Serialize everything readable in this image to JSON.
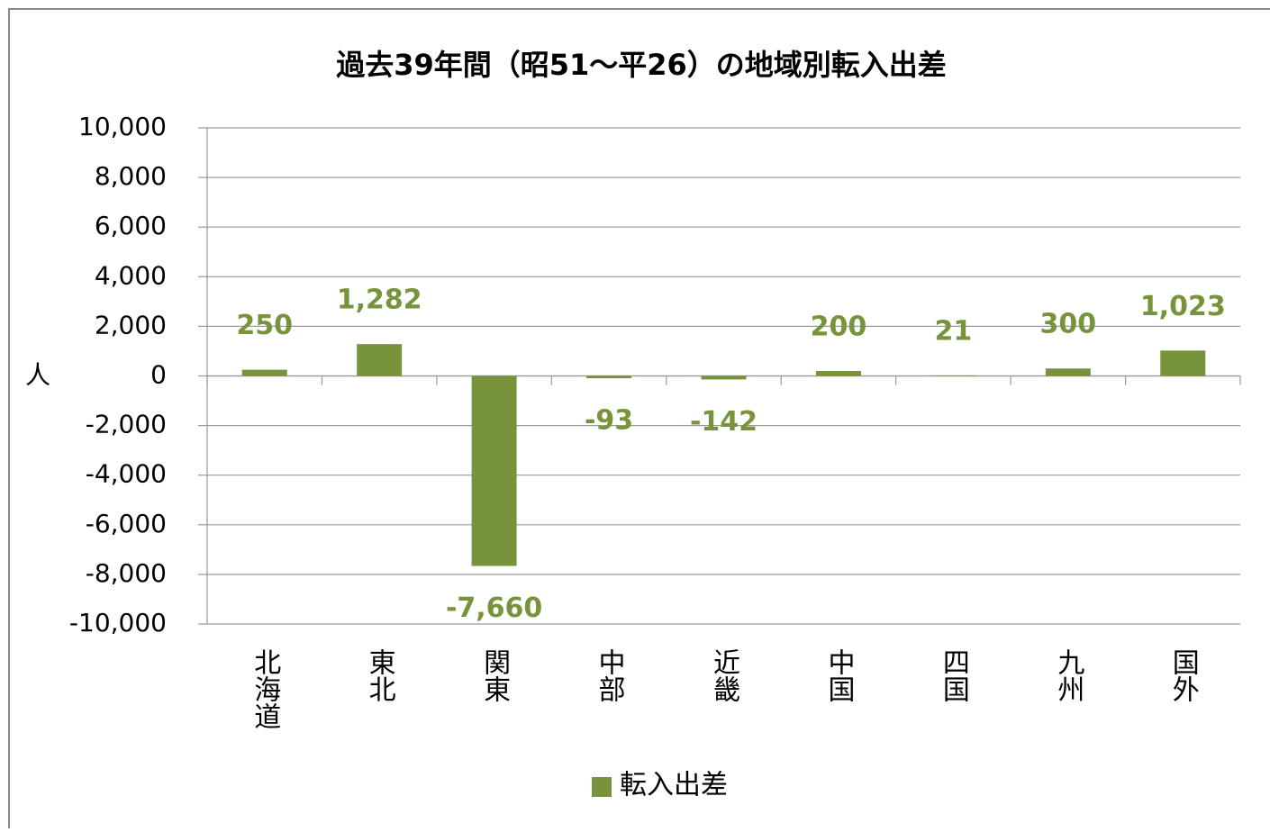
{
  "chart_data": {
    "type": "bar",
    "title": "過去39年間（昭51～平26）の地域別転入出差",
    "y_label": "人",
    "categories": [
      "北海道",
      "東北",
      "関東",
      "中部",
      "近畿",
      "中国",
      "四国",
      "九州",
      "国外"
    ],
    "series": [
      {
        "name": "転入出差",
        "color": "#77933c",
        "values": [
          250,
          1282,
          -7660,
          -93,
          -142,
          200,
          21,
          300,
          1023
        ],
        "value_labels": [
          "250",
          "1,282",
          "-7,660",
          "-93",
          "-142",
          "200",
          "21",
          "300",
          "1,023"
        ]
      }
    ],
    "ylim": [
      -10000,
      10000
    ],
    "yticks": [
      {
        "value": -10000,
        "label": "-10,000"
      },
      {
        "value": -8000,
        "label": "-8,000"
      },
      {
        "value": -6000,
        "label": "-6,000"
      },
      {
        "value": -4000,
        "label": "-4,000"
      },
      {
        "value": -2000,
        "label": "-2,000"
      },
      0,
      {
        "value": 2000,
        "label": "2,000"
      },
      {
        "value": 4000,
        "label": "4,000"
      },
      {
        "value": 6000,
        "label": "6,000"
      },
      {
        "value": 8000,
        "label": "8,000"
      },
      {
        "value": 10000,
        "label": "10,000"
      }
    ],
    "grid": true,
    "legend": "bottom"
  }
}
